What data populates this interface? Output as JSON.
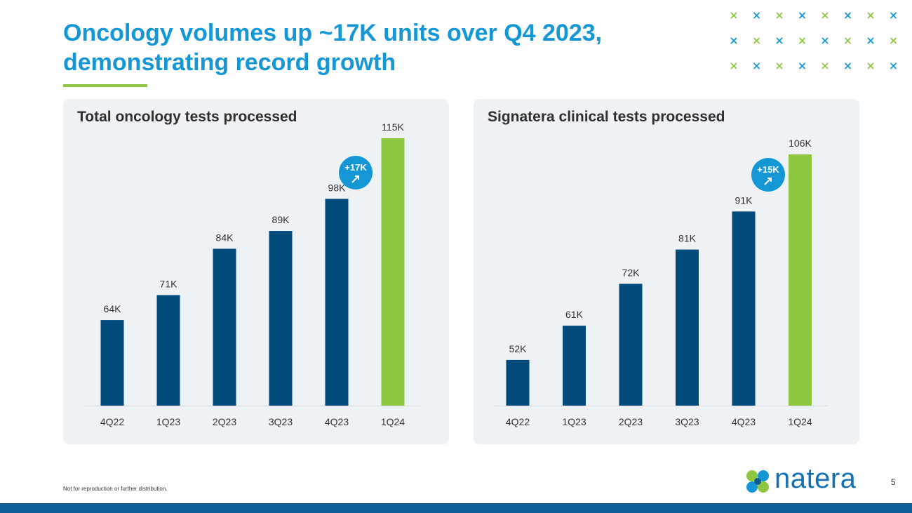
{
  "page": {
    "title": "Oncology volumes up ~17K units over Q4 2023, demonstrating record growth",
    "footer_note": "Not for reproduction or further distribution.",
    "page_number": "5",
    "brand_name": "natera",
    "colors": {
      "title": "#1497d4",
      "bar": "#004a7c",
      "highlight_bar": "#8dc63f",
      "badge": "#1497d4",
      "bottom_bar": "#0f5d96"
    }
  },
  "chart_data": [
    {
      "type": "bar",
      "title": "Total oncology tests processed",
      "categories": [
        "4Q22",
        "1Q23",
        "2Q23",
        "3Q23",
        "4Q23",
        "1Q24"
      ],
      "values": [
        64,
        71,
        84,
        89,
        98,
        115
      ],
      "value_labels": [
        "64K",
        "71K",
        "84K",
        "89K",
        "98K",
        "115K"
      ],
      "highlight_index": 5,
      "badge": "+17K",
      "xlabel": "",
      "ylabel": "",
      "ylim": [
        40,
        115
      ],
      "grid": false
    },
    {
      "type": "bar",
      "title": "Signatera clinical tests processed",
      "categories": [
        "4Q22",
        "1Q23",
        "2Q23",
        "3Q23",
        "4Q23",
        "1Q24"
      ],
      "values": [
        52,
        61,
        72,
        81,
        91,
        106
      ],
      "value_labels": [
        "52K",
        "61K",
        "72K",
        "81K",
        "91K",
        "106K"
      ],
      "highlight_index": 5,
      "badge": "+15K",
      "xlabel": "",
      "ylabel": "",
      "ylim": [
        40,
        106
      ],
      "grid": false
    }
  ]
}
